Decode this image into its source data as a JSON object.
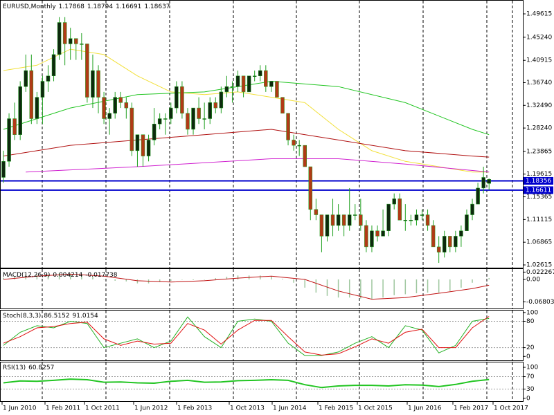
{
  "chart_data": [
    {
      "type": "candlestick",
      "title": "EURUSD,Monthly",
      "open": [
        1.19,
        1.22,
        1.3,
        1.27,
        1.36,
        1.39,
        1.3,
        1.34,
        1.37,
        1.38,
        1.42,
        1.48,
        1.44,
        1.45,
        1.44,
        1.44,
        1.34,
        1.39,
        1.34,
        1.3,
        1.31,
        1.34,
        1.33,
        1.32,
        1.24,
        1.27,
        1.23,
        1.26,
        1.29,
        1.3,
        1.3,
        1.32,
        1.36,
        1.31,
        1.28,
        1.32,
        1.3,
        1.3,
        1.33,
        1.32,
        1.35,
        1.36,
        1.36,
        1.38,
        1.35,
        1.38,
        1.38,
        1.39,
        1.36,
        1.37,
        1.34,
        1.31,
        1.26,
        1.25,
        1.25,
        1.21,
        1.13,
        1.12,
        1.08,
        1.12,
        1.1,
        1.12,
        1.1,
        1.12,
        1.12,
        1.1,
        1.06,
        1.09,
        1.08,
        1.09,
        1.14,
        1.15,
        1.11,
        1.11,
        1.11,
        1.12,
        1.12,
        1.1,
        1.06,
        1.05,
        1.08,
        1.06,
        1.08,
        1.09,
        1.12,
        1.14,
        1.17,
        1.17868
      ],
      "high": [
        1.24,
        1.31,
        1.33,
        1.37,
        1.42,
        1.42,
        1.35,
        1.38,
        1.4,
        1.43,
        1.49,
        1.49,
        1.47,
        1.45,
        1.46,
        1.44,
        1.42,
        1.4,
        1.35,
        1.32,
        1.35,
        1.35,
        1.34,
        1.33,
        1.27,
        1.27,
        1.27,
        1.32,
        1.31,
        1.31,
        1.33,
        1.37,
        1.37,
        1.32,
        1.32,
        1.34,
        1.33,
        1.34,
        1.34,
        1.36,
        1.38,
        1.37,
        1.39,
        1.38,
        1.38,
        1.39,
        1.4,
        1.4,
        1.37,
        1.37,
        1.34,
        1.31,
        1.27,
        1.26,
        1.25,
        1.21,
        1.15,
        1.12,
        1.12,
        1.15,
        1.14,
        1.12,
        1.17,
        1.14,
        1.15,
        1.11,
        1.1,
        1.1,
        1.13,
        1.14,
        1.16,
        1.16,
        1.14,
        1.12,
        1.13,
        1.13,
        1.13,
        1.11,
        1.08,
        1.09,
        1.08,
        1.09,
        1.1,
        1.13,
        1.15,
        1.18,
        1.21,
        1.18794
      ],
      "low": [
        1.18,
        1.21,
        1.26,
        1.26,
        1.35,
        1.29,
        1.29,
        1.29,
        1.35,
        1.37,
        1.41,
        1.4,
        1.41,
        1.41,
        1.41,
        1.33,
        1.32,
        1.31,
        1.29,
        1.27,
        1.3,
        1.32,
        1.3,
        1.23,
        1.21,
        1.21,
        1.22,
        1.25,
        1.28,
        1.27,
        1.29,
        1.31,
        1.3,
        1.27,
        1.27,
        1.29,
        1.28,
        1.29,
        1.31,
        1.31,
        1.34,
        1.33,
        1.35,
        1.34,
        1.35,
        1.37,
        1.37,
        1.35,
        1.35,
        1.34,
        1.31,
        1.25,
        1.24,
        1.23,
        1.21,
        1.11,
        1.11,
        1.05,
        1.07,
        1.08,
        1.09,
        1.08,
        1.09,
        1.11,
        1.09,
        1.05,
        1.05,
        1.07,
        1.08,
        1.08,
        1.13,
        1.11,
        1.09,
        1.1,
        1.1,
        1.11,
        1.09,
        1.06,
        1.03,
        1.04,
        1.05,
        1.05,
        1.06,
        1.09,
        1.11,
        1.14,
        1.16,
        1.16691
      ],
      "close": [
        1.22,
        1.3,
        1.27,
        1.36,
        1.39,
        1.3,
        1.34,
        1.37,
        1.38,
        1.42,
        1.48,
        1.44,
        1.45,
        1.44,
        1.44,
        1.34,
        1.39,
        1.34,
        1.3,
        1.31,
        1.34,
        1.33,
        1.32,
        1.24,
        1.27,
        1.23,
        1.26,
        1.29,
        1.3,
        1.3,
        1.32,
        1.36,
        1.31,
        1.28,
        1.32,
        1.3,
        1.3,
        1.33,
        1.32,
        1.35,
        1.36,
        1.36,
        1.38,
        1.35,
        1.38,
        1.38,
        1.39,
        1.36,
        1.37,
        1.34,
        1.31,
        1.26,
        1.25,
        1.25,
        1.21,
        1.13,
        1.12,
        1.08,
        1.12,
        1.1,
        1.12,
        1.1,
        1.12,
        1.12,
        1.1,
        1.06,
        1.09,
        1.08,
        1.09,
        1.14,
        1.15,
        1.11,
        1.11,
        1.11,
        1.12,
        1.12,
        1.1,
        1.06,
        1.05,
        1.08,
        1.06,
        1.08,
        1.09,
        1.12,
        1.14,
        1.17,
        1.19,
        1.18637
      ],
      "up_color": "#0d2a0d",
      "down_color": "#b13a16",
      "wick_color": "#1fa01f",
      "series": [
        {
          "color": "#f2e03a",
          "x": [
            0,
            6,
            12,
            18,
            24,
            30,
            36,
            42,
            48,
            54,
            60,
            66,
            72,
            78,
            84,
            87
          ],
          "values": [
            1.39,
            1.4,
            1.43,
            1.42,
            1.38,
            1.35,
            1.345,
            1.35,
            1.34,
            1.33,
            1.28,
            1.24,
            1.22,
            1.21,
            1.2,
            1.2
          ]
        },
        {
          "color": "#22c522",
          "x": [
            0,
            12,
            24,
            36,
            48,
            60,
            72,
            84,
            87
          ],
          "values": [
            1.28,
            1.32,
            1.345,
            1.35,
            1.37,
            1.36,
            1.33,
            1.28,
            1.27
          ]
        },
        {
          "color": "#b01010",
          "x": [
            0,
            12,
            24,
            36,
            48,
            60,
            72,
            84,
            87
          ],
          "values": [
            1.23,
            1.25,
            1.26,
            1.27,
            1.28,
            1.26,
            1.24,
            1.23,
            1.228
          ]
        },
        {
          "color": "#d020d0",
          "x": [
            4,
            24,
            48,
            60,
            72,
            87
          ],
          "values": [
            1.2,
            1.21,
            1.225,
            1.225,
            1.215,
            1.2
          ]
        }
      ],
      "hlines": [
        {
          "value": 1.18356,
          "color": "#0000cc"
        },
        {
          "value": 1.16611,
          "color": "#0000cc"
        }
      ],
      "ylim": [
        1.021,
        1.5221
      ],
      "yticks": [
        1.49615,
        {
          "value": 1.4524,
          "label": "1.45240"
        },
        1.40915,
        {
          "value": 1.3674,
          "label": "1.36740"
        },
        {
          "value": 1.3249,
          "label": "1.32490"
        },
        {
          "value": 1.2824,
          "label": "1.28240"
        },
        1.23865,
        1.19615,
        1.15365,
        1.11115,
        1.06865,
        1.02615
      ],
      "x_labels": [
        "1 Jun 2010",
        "1 Feb 2011",
        "1 Oct 2011",
        "1 Jun 2012",
        "1 Feb 2013",
        "1 Oct 2013",
        "1 Jun 2014",
        "1 Feb 2015",
        "1 Oct 2015",
        "1 Jun 2016",
        "1 Feb 2017",
        "1 Oct 2017"
      ]
    },
    {
      "type": "macd",
      "title": "MACD(12,26,9)",
      "histogram": {
        "color": "#9fc79f",
        "x": [
          0,
          2,
          4,
          6,
          8,
          10,
          12,
          14,
          16,
          18,
          20,
          22,
          24,
          26,
          28,
          30,
          32,
          34,
          36,
          38,
          40,
          42,
          44,
          46,
          48,
          50,
          52,
          54,
          56,
          58,
          60,
          62,
          64,
          66,
          68,
          70,
          72,
          74,
          76,
          78,
          80,
          82,
          84,
          87
        ],
        "values": [
          0.005,
          0.01,
          0.015,
          0.015,
          0.015,
          0.02,
          0.018,
          0.015,
          0.008,
          0,
          -0.004,
          -0.006,
          -0.012,
          -0.012,
          -0.008,
          -0.004,
          0,
          -0.002,
          0,
          0.004,
          0.008,
          0.012,
          0.012,
          0.012,
          0.01,
          0.002,
          -0.01,
          -0.025,
          -0.04,
          -0.05,
          -0.055,
          -0.055,
          -0.058,
          -0.06,
          -0.055,
          -0.048,
          -0.045,
          -0.042,
          -0.04,
          -0.04,
          -0.035,
          -0.025,
          -0.01,
          0.004214
        ]
      },
      "signal": {
        "color": "#c01010",
        "x": [
          0,
          6,
          12,
          18,
          24,
          30,
          36,
          42,
          48,
          54,
          60,
          66,
          72,
          78,
          84,
          87
        ],
        "values": [
          0,
          0.01,
          0.016,
          0.01,
          -0.004,
          -0.008,
          -0.004,
          0.004,
          0.01,
          0,
          -0.035,
          -0.06,
          -0.055,
          -0.042,
          -0.028,
          -0.017738
        ]
      },
      "ylim": [
        -0.0882,
        0.0336
      ],
      "yticks": [
        0.022267,
        {
          "value": 0,
          "label": "0.00"
        },
        -0.068036
      ]
    },
    {
      "type": "line",
      "title": "Stoch(8,3,3)",
      "series": [
        {
          "color": "#22b022",
          "x": [
            0,
            3,
            6,
            9,
            12,
            15,
            18,
            21,
            24,
            27,
            30,
            33,
            36,
            39,
            42,
            45,
            48,
            51,
            54,
            57,
            60,
            63,
            66,
            69,
            72,
            75,
            78,
            81,
            84,
            87
          ],
          "values": [
            25,
            55,
            70,
            65,
            80,
            75,
            20,
            30,
            40,
            20,
            35,
            90,
            45,
            20,
            80,
            85,
            80,
            30,
            2,
            2,
            10,
            30,
            45,
            20,
            70,
            60,
            8,
            25,
            80,
            86.5152
          ]
        },
        {
          "color": "#e01010",
          "x": [
            0,
            3,
            6,
            9,
            12,
            15,
            18,
            21,
            24,
            27,
            30,
            33,
            36,
            39,
            42,
            45,
            48,
            51,
            54,
            57,
            60,
            63,
            66,
            69,
            72,
            75,
            78,
            81,
            84,
            87
          ],
          "values": [
            30,
            45,
            65,
            68,
            75,
            78,
            40,
            25,
            35,
            28,
            30,
            75,
            60,
            28,
            60,
            82,
            82,
            45,
            10,
            3,
            6,
            22,
            40,
            30,
            55,
            62,
            20,
            20,
            65,
            91.0154
          ]
        }
      ],
      "ylim": [
        -9,
        106
      ],
      "yticks": [
        100,
        80,
        20,
        0
      ],
      "grid": [
        80,
        20
      ]
    },
    {
      "type": "line",
      "title": "RSI(13)",
      "series": [
        {
          "color": "#22c522",
          "x": [
            0,
            3,
            6,
            9,
            12,
            15,
            18,
            21,
            24,
            27,
            30,
            33,
            36,
            39,
            42,
            45,
            48,
            51,
            54,
            57,
            60,
            63,
            66,
            69,
            72,
            75,
            78,
            81,
            84,
            87
          ],
          "values": [
            50,
            56,
            55,
            58,
            62,
            60,
            52,
            53,
            50,
            49,
            55,
            58,
            52,
            53,
            57,
            58,
            60,
            58,
            44,
            35,
            40,
            42,
            42,
            40,
            44,
            43,
            38,
            45,
            55,
            60.8257
          ]
        }
      ],
      "ylim": [
        -9,
        118
      ],
      "yticks": [
        100,
        70,
        30,
        0
      ],
      "grid": [
        70,
        30
      ]
    }
  ]
}
